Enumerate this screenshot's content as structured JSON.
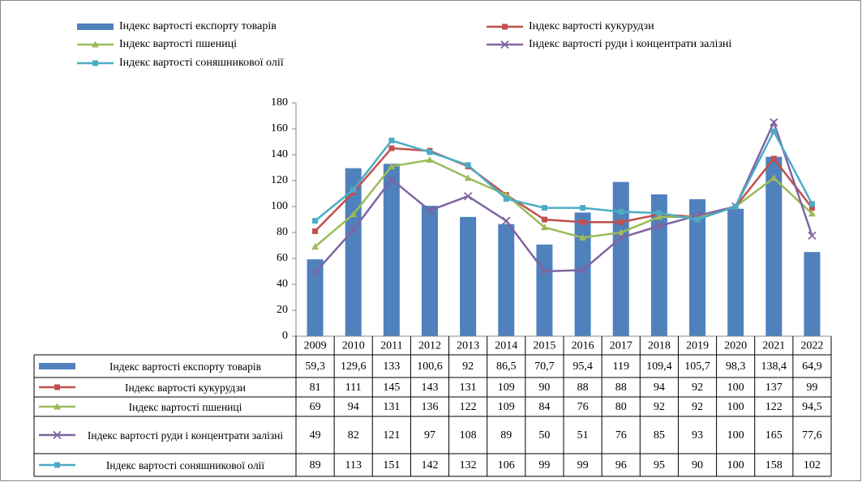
{
  "chart_data": {
    "type": "bar-line-table",
    "categories": [
      "2009",
      "2010",
      "2011",
      "2012",
      "2013",
      "2014",
      "2015",
      "2016",
      "2017",
      "2018",
      "2019",
      "2020",
      "2021",
      "2022"
    ],
    "ylim": [
      0,
      180
    ],
    "yticks": [
      0,
      20,
      40,
      60,
      80,
      100,
      120,
      140,
      160,
      180
    ],
    "series": [
      {
        "name": "Індекс вартості експорту  товарів",
        "kind": "bar",
        "color": "#4f81bd",
        "values": [
          59.3,
          129.6,
          133,
          100.6,
          92,
          86.5,
          70.7,
          95.4,
          119,
          109.4,
          105.7,
          98.3,
          138.4,
          64.9
        ],
        "value_labels": [
          "59,3",
          "129,6",
          "133",
          "100,6",
          "92",
          "86,5",
          "70,7",
          "95,4",
          "119",
          "109,4",
          "105,7",
          "98,3",
          "138,4",
          "64,9"
        ]
      },
      {
        "name": "Індекс вартості кукурудзи",
        "kind": "line",
        "marker": "square",
        "color": "#c0504d",
        "values": [
          81,
          111,
          145,
          143,
          131,
          109,
          90,
          88,
          88,
          94,
          92,
          100,
          137,
          99
        ]
      },
      {
        "name": "Індекс вартості пшениці",
        "kind": "line",
        "marker": "triangle",
        "color": "#9bbb59",
        "values": [
          69,
          94,
          131,
          136,
          122,
          109,
          84,
          76,
          80,
          92,
          92,
          100,
          122,
          94.5
        ],
        "value_labels": [
          "69",
          "94",
          "131",
          "136",
          "122",
          "109",
          "84",
          "76",
          "80",
          "92",
          "92",
          "100",
          "122",
          "94,5"
        ]
      },
      {
        "name": "Індекс вартості руди і концентрати  залізні",
        "kind": "line",
        "marker": "x",
        "color": "#8064a2",
        "values": [
          49,
          82,
          121,
          97,
          108,
          89,
          50,
          51,
          76,
          85,
          93,
          100,
          165,
          77.6
        ],
        "value_labels": [
          "49",
          "82",
          "121",
          "97",
          "108",
          "89",
          "50",
          "51",
          "76",
          "85",
          "93",
          "100",
          "165",
          "77,6"
        ]
      },
      {
        "name": "Індекс вартості соняшникової олії",
        "kind": "line",
        "marker": "square",
        "color": "#4bacc6",
        "values": [
          89,
          113,
          151,
          142,
          132,
          106,
          99,
          99,
          96,
          95,
          90,
          100,
          158,
          102
        ]
      }
    ]
  }
}
